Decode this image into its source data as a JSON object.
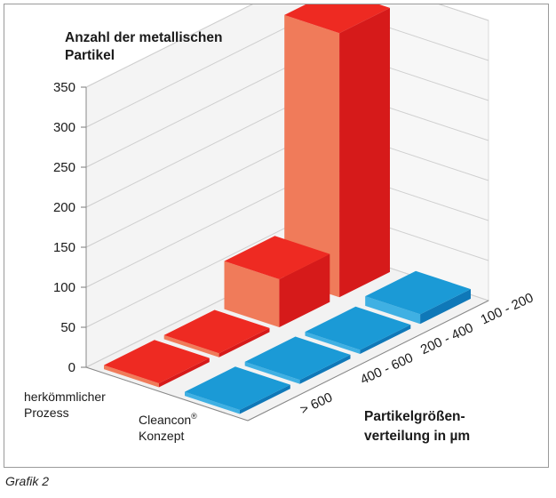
{
  "chart_data": {
    "type": "bar",
    "subtype": "3d-bar",
    "title": "Anzahl der metallischen Partikel",
    "xlabel": "Partikelgrößen-verteilung in µm",
    "ylim": [
      0,
      350
    ],
    "yticks": [
      0,
      50,
      100,
      150,
      200,
      250,
      300,
      350
    ],
    "categories": [
      "100 - 200",
      "200 - 400",
      "400 - 600",
      "> 600"
    ],
    "series": [
      {
        "name": "herkömmlicher Prozess",
        "values": [
          330,
          60,
          5,
          5
        ],
        "color": "#e8231f"
      },
      {
        "name": "Cleancon® Konzept",
        "values": [
          12,
          5,
          5,
          5
        ],
        "color": "#1b9ad6"
      }
    ],
    "grid": true
  },
  "labels": {
    "title_line1": "Anzahl der metallischen",
    "title_line2": "Partikel",
    "xlabel_line1": "Partikelgrößen-",
    "xlabel_line2": "verteilung in µm",
    "series1_line1": "herkömmlicher",
    "series1_line2": "Prozess",
    "series2_line1": "Cleancon",
    "series2_sup": "®",
    "series2_line2": "Konzept"
  },
  "caption": "Grafik 2",
  "colors": {
    "front_red": "#f07b5a",
    "side_red": "#d61a1a",
    "top_red": "#ee2a22",
    "top_blue": "#1b9ad6",
    "side_blue": "#0f78b8",
    "grid": "#cfcfcf"
  }
}
